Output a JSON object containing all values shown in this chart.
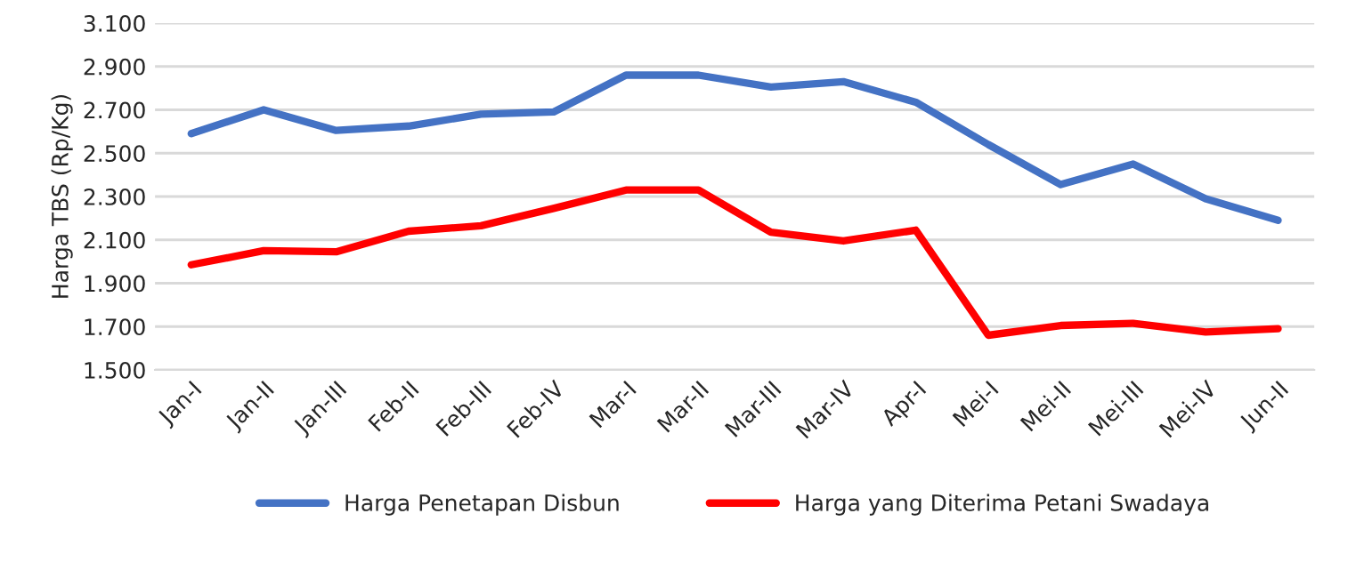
{
  "chart_data": {
    "type": "line",
    "ylabel": "Harga TBS (Rp/Kg)",
    "categories": [
      "Jan-I",
      "Jan-II",
      "Jan-III",
      "Feb-II",
      "Feb-III",
      "Feb-IV",
      "Mar-I",
      "Mar-II",
      "Mar-III",
      "Mar-IV",
      "Apr-I",
      "Mei-I",
      "Mei-II",
      "Mei-III",
      "Mei-IV",
      "Jun-II"
    ],
    "series": [
      {
        "name": "Harga Penetapan Disbun",
        "color": "#4472c4",
        "values": [
          2590,
          2700,
          2605,
          2625,
          2680,
          2690,
          2860,
          2860,
          2805,
          2830,
          2735,
          2540,
          2355,
          2450,
          2290,
          2190
        ]
      },
      {
        "name": "Harga yang Diterima Petani Swadaya",
        "color": "#ff0000",
        "values": [
          1985,
          2050,
          2045,
          2140,
          2165,
          2245,
          2330,
          2330,
          2135,
          2095,
          2145,
          1660,
          1705,
          1715,
          1675,
          1690
        ]
      }
    ],
    "ylim": [
      1500,
      3100
    ],
    "yticks": [
      {
        "value": 1500,
        "label": "1.500"
      },
      {
        "value": 1700,
        "label": "1.700"
      },
      {
        "value": 1900,
        "label": "1.900"
      },
      {
        "value": 2100,
        "label": "2.100"
      },
      {
        "value": 2300,
        "label": "2.300"
      },
      {
        "value": 2500,
        "label": "2.500"
      },
      {
        "value": 2700,
        "label": "2.700"
      },
      {
        "value": 2900,
        "label": "2.900"
      },
      {
        "value": 3100,
        "label": "3.100"
      }
    ],
    "grid": "y",
    "legend": "bottom",
    "line_style": "solid",
    "marker": "none"
  }
}
